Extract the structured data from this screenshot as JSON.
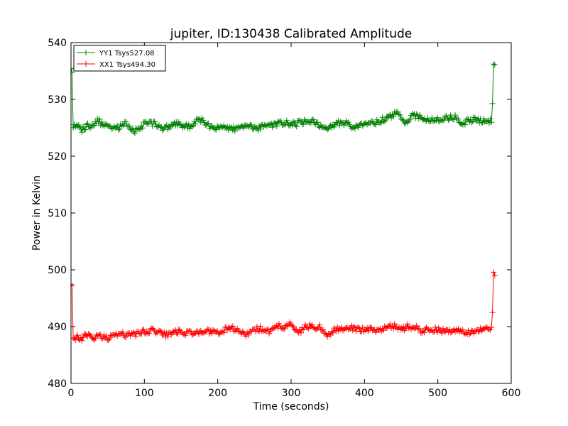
{
  "chart_data": {
    "type": "line",
    "title": "jupiter, ID:130438 Calibrated Amplitude",
    "xlabel": "Time (seconds)",
    "ylabel": "Power in Kelvin",
    "xlim": [
      0,
      600
    ],
    "ylim": [
      480,
      540
    ],
    "xticks": [
      "0",
      "100",
      "200",
      "300",
      "400",
      "500",
      "600"
    ],
    "yticks": [
      "480",
      "490",
      "500",
      "510",
      "520",
      "530",
      "540"
    ],
    "grid": false,
    "legend_position": "top-left",
    "marker": "+",
    "series": [
      {
        "name": "YY1 Tsys527.08",
        "color": "#008000",
        "anchors": [
          [
            0,
            535.5
          ],
          [
            2,
            535.0
          ],
          [
            3,
            525.3
          ],
          [
            10,
            525.2
          ],
          [
            15,
            524.5
          ],
          [
            20,
            525.3
          ],
          [
            25,
            525.6
          ],
          [
            30,
            525.0
          ],
          [
            36,
            526.3
          ],
          [
            45,
            525.5
          ],
          [
            55,
            524.9
          ],
          [
            65,
            525.0
          ],
          [
            75,
            525.8
          ],
          [
            85,
            524.3
          ],
          [
            95,
            525.3
          ],
          [
            105,
            525.9
          ],
          [
            115,
            525.7
          ],
          [
            125,
            524.9
          ],
          [
            135,
            525.2
          ],
          [
            145,
            525.7
          ],
          [
            155,
            525.4
          ],
          [
            165,
            525.2
          ],
          [
            175,
            526.6
          ],
          [
            185,
            525.5
          ],
          [
            195,
            524.8
          ],
          [
            205,
            525.2
          ],
          [
            215,
            525.1
          ],
          [
            225,
            524.7
          ],
          [
            235,
            525.0
          ],
          [
            245,
            525.4
          ],
          [
            255,
            524.8
          ],
          [
            265,
            525.6
          ],
          [
            275,
            525.3
          ],
          [
            285,
            526.0
          ],
          [
            295,
            525.8
          ],
          [
            305,
            525.6
          ],
          [
            315,
            526.0
          ],
          [
            325,
            526.4
          ],
          [
            335,
            525.7
          ],
          [
            345,
            524.6
          ],
          [
            355,
            525.3
          ],
          [
            365,
            525.8
          ],
          [
            375,
            526.0
          ],
          [
            385,
            525.1
          ],
          [
            395,
            525.7
          ],
          [
            405,
            526.0
          ],
          [
            415,
            525.8
          ],
          [
            425,
            526.4
          ],
          [
            435,
            527.0
          ],
          [
            445,
            527.6
          ],
          [
            455,
            525.9
          ],
          [
            465,
            527.2
          ],
          [
            475,
            527.0
          ],
          [
            485,
            526.2
          ],
          [
            495,
            526.6
          ],
          [
            505,
            526.5
          ],
          [
            515,
            526.8
          ],
          [
            525,
            526.8
          ],
          [
            535,
            525.8
          ],
          [
            545,
            526.4
          ],
          [
            555,
            526.3
          ],
          [
            565,
            526.2
          ],
          [
            574,
            526.4
          ],
          [
            576,
            536.5
          ],
          [
            578,
            536.3
          ]
        ]
      },
      {
        "name": "XX1 Tsys494.30",
        "color": "#ff0000",
        "anchors": [
          [
            0,
            497.5
          ],
          [
            2,
            497.0
          ],
          [
            3,
            488.3
          ],
          [
            10,
            488.0
          ],
          [
            15,
            487.8
          ],
          [
            20,
            488.4
          ],
          [
            25,
            488.3
          ],
          [
            30,
            488.1
          ],
          [
            40,
            488.2
          ],
          [
            50,
            488.0
          ],
          [
            60,
            488.3
          ],
          [
            70,
            488.6
          ],
          [
            80,
            488.4
          ],
          [
            90,
            488.8
          ],
          [
            100,
            489.1
          ],
          [
            110,
            489.3
          ],
          [
            120,
            489.0
          ],
          [
            130,
            488.5
          ],
          [
            140,
            489.0
          ],
          [
            150,
            489.1
          ],
          [
            160,
            488.8
          ],
          [
            170,
            489.0
          ],
          [
            180,
            489.3
          ],
          [
            190,
            489.2
          ],
          [
            200,
            488.9
          ],
          [
            210,
            489.4
          ],
          [
            220,
            489.6
          ],
          [
            230,
            489.3
          ],
          [
            240,
            488.7
          ],
          [
            250,
            489.5
          ],
          [
            260,
            489.6
          ],
          [
            270,
            489.2
          ],
          [
            280,
            490.3
          ],
          [
            290,
            489.9
          ],
          [
            300,
            490.4
          ],
          [
            310,
            488.9
          ],
          [
            320,
            490.3
          ],
          [
            330,
            489.8
          ],
          [
            340,
            489.9
          ],
          [
            350,
            488.3
          ],
          [
            360,
            489.5
          ],
          [
            370,
            489.8
          ],
          [
            380,
            490.0
          ],
          [
            390,
            489.6
          ],
          [
            400,
            489.4
          ],
          [
            410,
            489.5
          ],
          [
            420,
            489.2
          ],
          [
            430,
            489.7
          ],
          [
            440,
            490.2
          ],
          [
            450,
            489.6
          ],
          [
            460,
            490.0
          ],
          [
            470,
            489.7
          ],
          [
            480,
            489.2
          ],
          [
            490,
            489.6
          ],
          [
            500,
            489.4
          ],
          [
            510,
            489.3
          ],
          [
            520,
            489.3
          ],
          [
            530,
            489.1
          ],
          [
            540,
            488.9
          ],
          [
            550,
            489.3
          ],
          [
            560,
            489.4
          ],
          [
            570,
            489.5
          ],
          [
            574,
            489.6
          ],
          [
            576,
            499.2
          ],
          [
            578,
            499.4
          ]
        ]
      }
    ]
  }
}
